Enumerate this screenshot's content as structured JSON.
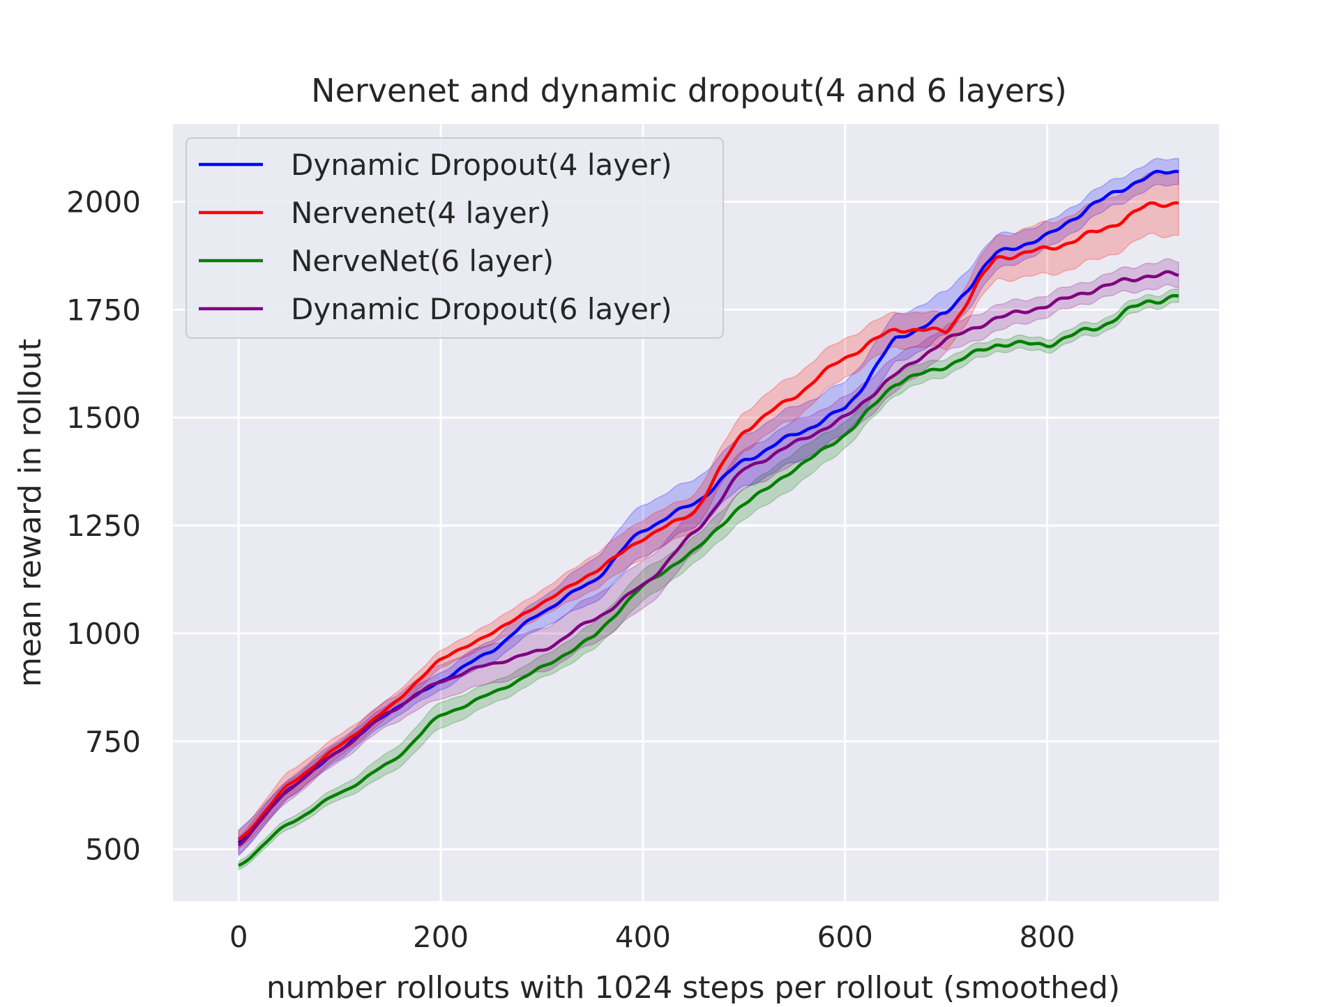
{
  "chart_data": {
    "type": "line",
    "title": "Nervenet and dynamic dropout(4 and 6 layers)",
    "xlabel": "number rollouts with 1024 steps per rollout (smoothed)",
    "ylabel": "mean reward in rollout",
    "xlim": [
      -65,
      970
    ],
    "ylim": [
      380,
      2180
    ],
    "xticks": [
      0,
      200,
      400,
      600,
      800
    ],
    "xtick_labels": [
      "0",
      "200",
      "400",
      "600",
      "800"
    ],
    "yticks": [
      500,
      750,
      1000,
      1250,
      1500,
      1750,
      2000
    ],
    "ytick_labels": [
      "500",
      "750",
      "1000",
      "1250",
      "1500",
      "1750",
      "2000"
    ],
    "grid": true,
    "legend_position": "top-left",
    "colors": {
      "background": "#eaeaf2",
      "grid": "#ffffff"
    },
    "x": [
      0,
      50,
      100,
      150,
      200,
      250,
      300,
      350,
      400,
      450,
      500,
      550,
      600,
      650,
      700,
      750,
      800,
      850,
      900,
      930
    ],
    "series": [
      {
        "name": "Dynamic Dropout(4 layer)",
        "color": "#0000ff",
        "values": [
          515,
          640,
          730,
          820,
          890,
          960,
          1050,
          1120,
          1240,
          1300,
          1400,
          1460,
          1520,
          1680,
          1740,
          1880,
          1920,
          2000,
          2060,
          2070
        ],
        "band": [
          30,
          20,
          20,
          20,
          20,
          25,
          35,
          50,
          60,
          55,
          60,
          65,
          60,
          55,
          50,
          40,
          30,
          30,
          30,
          30
        ]
      },
      {
        "name": "Nervenet(4 layer)",
        "color": "#ff0000",
        "values": [
          520,
          650,
          740,
          830,
          940,
          1000,
          1070,
          1140,
          1220,
          1280,
          1470,
          1550,
          1640,
          1705,
          1700,
          1870,
          1890,
          1930,
          1990,
          2000
        ],
        "band": [
          20,
          30,
          25,
          20,
          20,
          25,
          30,
          40,
          45,
          40,
          45,
          50,
          45,
          40,
          40,
          50,
          60,
          65,
          70,
          75
        ]
      },
      {
        "name": "NerveNet(6 layer)",
        "color": "#007f00",
        "values": [
          462,
          560,
          630,
          700,
          810,
          860,
          920,
          990,
          1110,
          1190,
          1300,
          1380,
          1460,
          1580,
          1620,
          1670,
          1670,
          1710,
          1770,
          1780
        ],
        "band": [
          10,
          12,
          15,
          25,
          30,
          25,
          25,
          30,
          35,
          30,
          35,
          40,
          30,
          25,
          20,
          15,
          15,
          15,
          15,
          15
        ]
      },
      {
        "name": "Dynamic Dropout(6 layer)",
        "color": "#800080",
        "values": [
          510,
          640,
          730,
          820,
          890,
          930,
          960,
          1030,
          1110,
          1230,
          1380,
          1440,
          1500,
          1600,
          1680,
          1730,
          1760,
          1800,
          1830,
          1830
        ],
        "band": [
          20,
          25,
          25,
          30,
          40,
          45,
          50,
          55,
          55,
          50,
          45,
          50,
          45,
          40,
          30,
          30,
          25,
          25,
          30,
          30
        ]
      }
    ]
  }
}
